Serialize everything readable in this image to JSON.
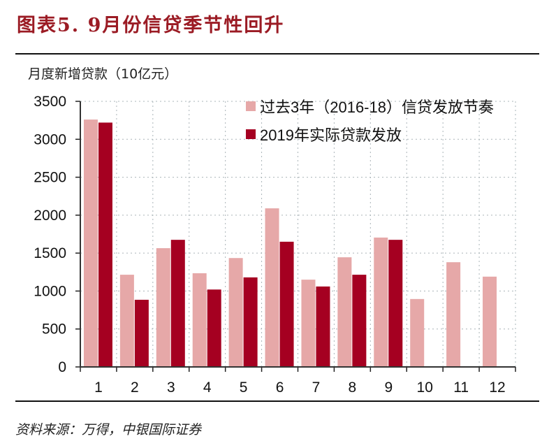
{
  "header": {
    "title": "图表5. 9月份信贷季节性回升",
    "unit_label": "月度新增贷款（10亿元）"
  },
  "footer": {
    "source": "资料来源：万得，中银国际证券"
  },
  "colors": {
    "series_past": "#e6a8a8",
    "series_2019": "#a50021",
    "title": "#9b1b24"
  },
  "legend": [
    {
      "label": "过去3年（2016-18）信贷发放节奏",
      "color": "#e6a8a8"
    },
    {
      "label": "2019年实际贷款发放",
      "color": "#a50021"
    }
  ],
  "chart_data": {
    "type": "bar",
    "title": "图表5. 9月份信贷季节性回升",
    "xlabel": "",
    "ylabel": "月度新增贷款（10亿元）",
    "ylim": [
      0,
      3500
    ],
    "yticks": [
      0,
      500,
      1000,
      1500,
      2000,
      2500,
      3000,
      3500
    ],
    "grid": true,
    "legend_position": "upper right",
    "categories": [
      "1",
      "2",
      "3",
      "4",
      "5",
      "6",
      "7",
      "8",
      "9",
      "10",
      "11",
      "12"
    ],
    "series": [
      {
        "name": "过去3年（2016-18）信贷发放节奏",
        "values": [
          3260,
          1215,
          1565,
          1235,
          1435,
          2090,
          1150,
          1445,
          1705,
          895,
          1380,
          1190
        ]
      },
      {
        "name": "2019年实际贷款发放",
        "values": [
          3220,
          885,
          1675,
          1020,
          1180,
          1650,
          1060,
          1215,
          1675,
          null,
          null,
          null
        ]
      }
    ]
  }
}
